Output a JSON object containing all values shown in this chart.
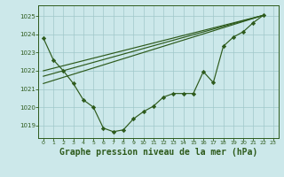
{
  "background_color": "#cce8ea",
  "grid_color": "#a0c8ca",
  "line_color": "#2d5a1b",
  "marker_color": "#2d5a1b",
  "xlabel": "Graphe pression niveau de la mer (hPa)",
  "xlabel_fontsize": 7,
  "xlim": [
    -0.5,
    23.5
  ],
  "ylim": [
    1018.3,
    1025.6
  ],
  "yticks": [
    1019,
    1020,
    1021,
    1022,
    1023,
    1024,
    1025
  ],
  "xticks": [
    0,
    1,
    2,
    3,
    4,
    5,
    6,
    7,
    8,
    9,
    10,
    11,
    12,
    13,
    14,
    15,
    16,
    17,
    18,
    19,
    20,
    21,
    22,
    23
  ],
  "main_x": [
    0,
    1,
    2,
    3,
    4,
    5,
    6,
    7,
    8,
    9,
    10,
    11,
    12,
    13,
    14,
    15,
    16,
    17,
    18,
    19,
    20,
    21,
    22
  ],
  "main_y": [
    1023.8,
    1022.6,
    1022.0,
    1021.3,
    1020.4,
    1020.0,
    1018.85,
    1018.65,
    1018.75,
    1019.35,
    1019.75,
    1020.05,
    1020.55,
    1020.75,
    1020.75,
    1020.75,
    1021.95,
    1021.35,
    1023.35,
    1023.85,
    1024.15,
    1024.65,
    1025.05
  ],
  "trend1_x": [
    0,
    22
  ],
  "trend1_y": [
    1022.0,
    1025.05
  ],
  "trend2_x": [
    0,
    22
  ],
  "trend2_y": [
    1021.7,
    1025.05
  ],
  "trend3_x": [
    0,
    22
  ],
  "trend3_y": [
    1021.3,
    1025.05
  ]
}
